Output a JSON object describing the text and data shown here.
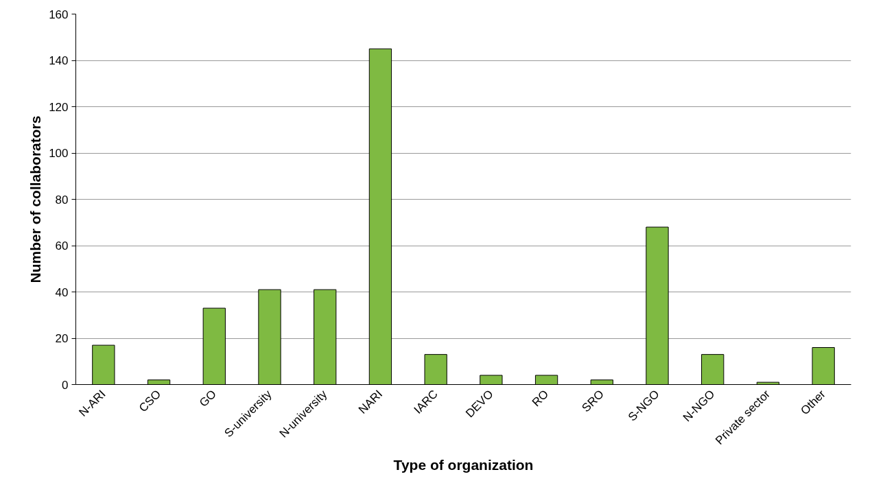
{
  "chart_data": {
    "type": "bar",
    "xlabel": "Type of organization",
    "ylabel": "Number of collaborators",
    "categories": [
      "N-ARI",
      "CSO",
      "GO",
      "S-university",
      "N-university",
      "NARI",
      "IARC",
      "DEVO",
      "RO",
      "SRO",
      "S-NGO",
      "N-NGO",
      "Private sector",
      "Other"
    ],
    "values": [
      17,
      2,
      33,
      41,
      41,
      145,
      13,
      4,
      4,
      2,
      68,
      13,
      1,
      16
    ],
    "color": "#7fba42",
    "ylim": [
      0,
      160
    ],
    "yticks": [
      0,
      20,
      40,
      60,
      80,
      100,
      120,
      140,
      160
    ],
    "grid": "y"
  }
}
